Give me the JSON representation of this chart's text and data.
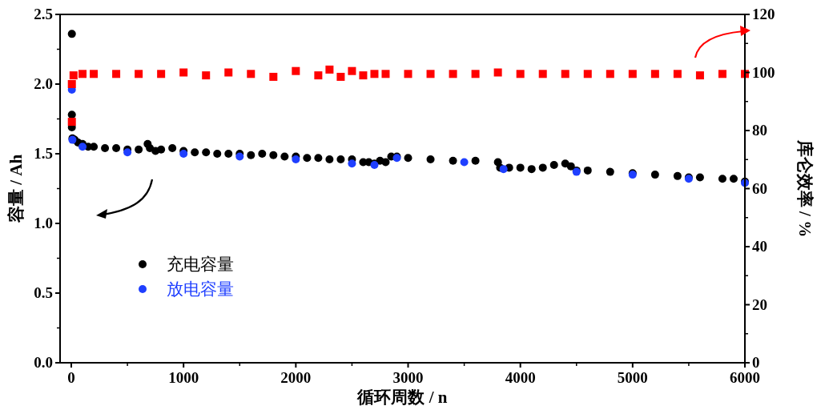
{
  "chart_data": {
    "type": "scatter",
    "xlabel": "循环周数 / n",
    "ylabel": "容量 / Ah",
    "y2label": "库仑效率 / %",
    "xlim": [
      -100,
      6000
    ],
    "xticks": [
      0,
      1000,
      2000,
      3000,
      4000,
      5000,
      6000
    ],
    "ylim": [
      0,
      2.5
    ],
    "yticks": [
      {
        "value": 0,
        "label": "0.0"
      },
      {
        "value": 0.5,
        "label": "0.5"
      },
      {
        "value": 1,
        "label": "1.0"
      },
      {
        "value": 1.5,
        "label": "1.5"
      },
      {
        "value": 2,
        "label": "2.0"
      },
      {
        "value": 2.5,
        "label": "2.5"
      }
    ],
    "y2lim": [
      0,
      120
    ],
    "y2ticks": [
      0,
      20,
      40,
      60,
      80,
      100,
      120
    ],
    "legend": "left",
    "grid": false,
    "marker": "circle",
    "series": [
      {
        "name": "充电容量",
        "color": "#000000",
        "x": [
          5,
          5,
          5,
          10,
          30,
          60,
          100,
          150,
          200,
          300,
          400,
          500,
          600,
          680,
          700,
          750,
          800,
          900,
          1000,
          1100,
          1200,
          1300,
          1400,
          1500,
          1600,
          1700,
          1800,
          1900,
          2000,
          2100,
          2200,
          2300,
          2400,
          2500,
          2600,
          2650,
          2700,
          2750,
          2800,
          2850,
          2900,
          3000,
          3200,
          3400,
          3600,
          3800,
          3820,
          3900,
          4000,
          4100,
          4200,
          4300,
          4400,
          4450,
          4500,
          4600,
          4800,
          5000,
          5200,
          5400,
          5500,
          5600,
          5800,
          5900,
          6000
        ],
        "values": [
          2.36,
          1.78,
          1.69,
          1.61,
          1.6,
          1.58,
          1.57,
          1.55,
          1.55,
          1.54,
          1.54,
          1.53,
          1.53,
          1.57,
          1.54,
          1.52,
          1.53,
          1.54,
          1.52,
          1.51,
          1.51,
          1.5,
          1.5,
          1.5,
          1.49,
          1.5,
          1.49,
          1.48,
          1.48,
          1.47,
          1.47,
          1.46,
          1.46,
          1.46,
          1.44,
          1.44,
          1.43,
          1.45,
          1.44,
          1.48,
          1.48,
          1.47,
          1.46,
          1.45,
          1.45,
          1.44,
          1.4,
          1.4,
          1.4,
          1.39,
          1.4,
          1.42,
          1.43,
          1.41,
          1.38,
          1.38,
          1.37,
          1.36,
          1.35,
          1.34,
          1.33,
          1.33,
          1.32,
          1.32,
          1.3
        ]
      },
      {
        "name": "放电容量",
        "color": "#1f3fff",
        "x": [
          5,
          10,
          100,
          500,
          1000,
          1500,
          2000,
          2500,
          2700,
          2900,
          3500,
          3850,
          4500,
          5000,
          5500,
          6000
        ],
        "values": [
          1.96,
          1.6,
          1.55,
          1.51,
          1.5,
          1.48,
          1.46,
          1.43,
          1.42,
          1.47,
          1.44,
          1.39,
          1.37,
          1.35,
          1.32,
          1.29
        ]
      },
      {
        "color": "#ff0000",
        "axis": "y2",
        "marker": "square",
        "x": [
          5,
          5,
          20,
          100,
          200,
          400,
          600,
          800,
          1000,
          1200,
          1400,
          1600,
          1800,
          2000,
          2200,
          2300,
          2400,
          2500,
          2600,
          2700,
          2800,
          3000,
          3200,
          3400,
          3600,
          3800,
          4000,
          4200,
          4400,
          4600,
          4800,
          5000,
          5200,
          5400,
          5600,
          5800,
          6000
        ],
        "values": [
          83,
          96,
          99,
          99.5,
          99.5,
          99.5,
          99.5,
          99.5,
          100,
          99,
          100,
          99.5,
          98.5,
          100.5,
          99,
          101,
          98.5,
          100.5,
          99,
          99.5,
          99.5,
          99.5,
          99.5,
          99.5,
          99.5,
          100,
          99.5,
          99.5,
          99.5,
          99.5,
          99.5,
          99.5,
          99.5,
          99.5,
          99,
          99.5,
          99.5
        ]
      }
    ]
  }
}
